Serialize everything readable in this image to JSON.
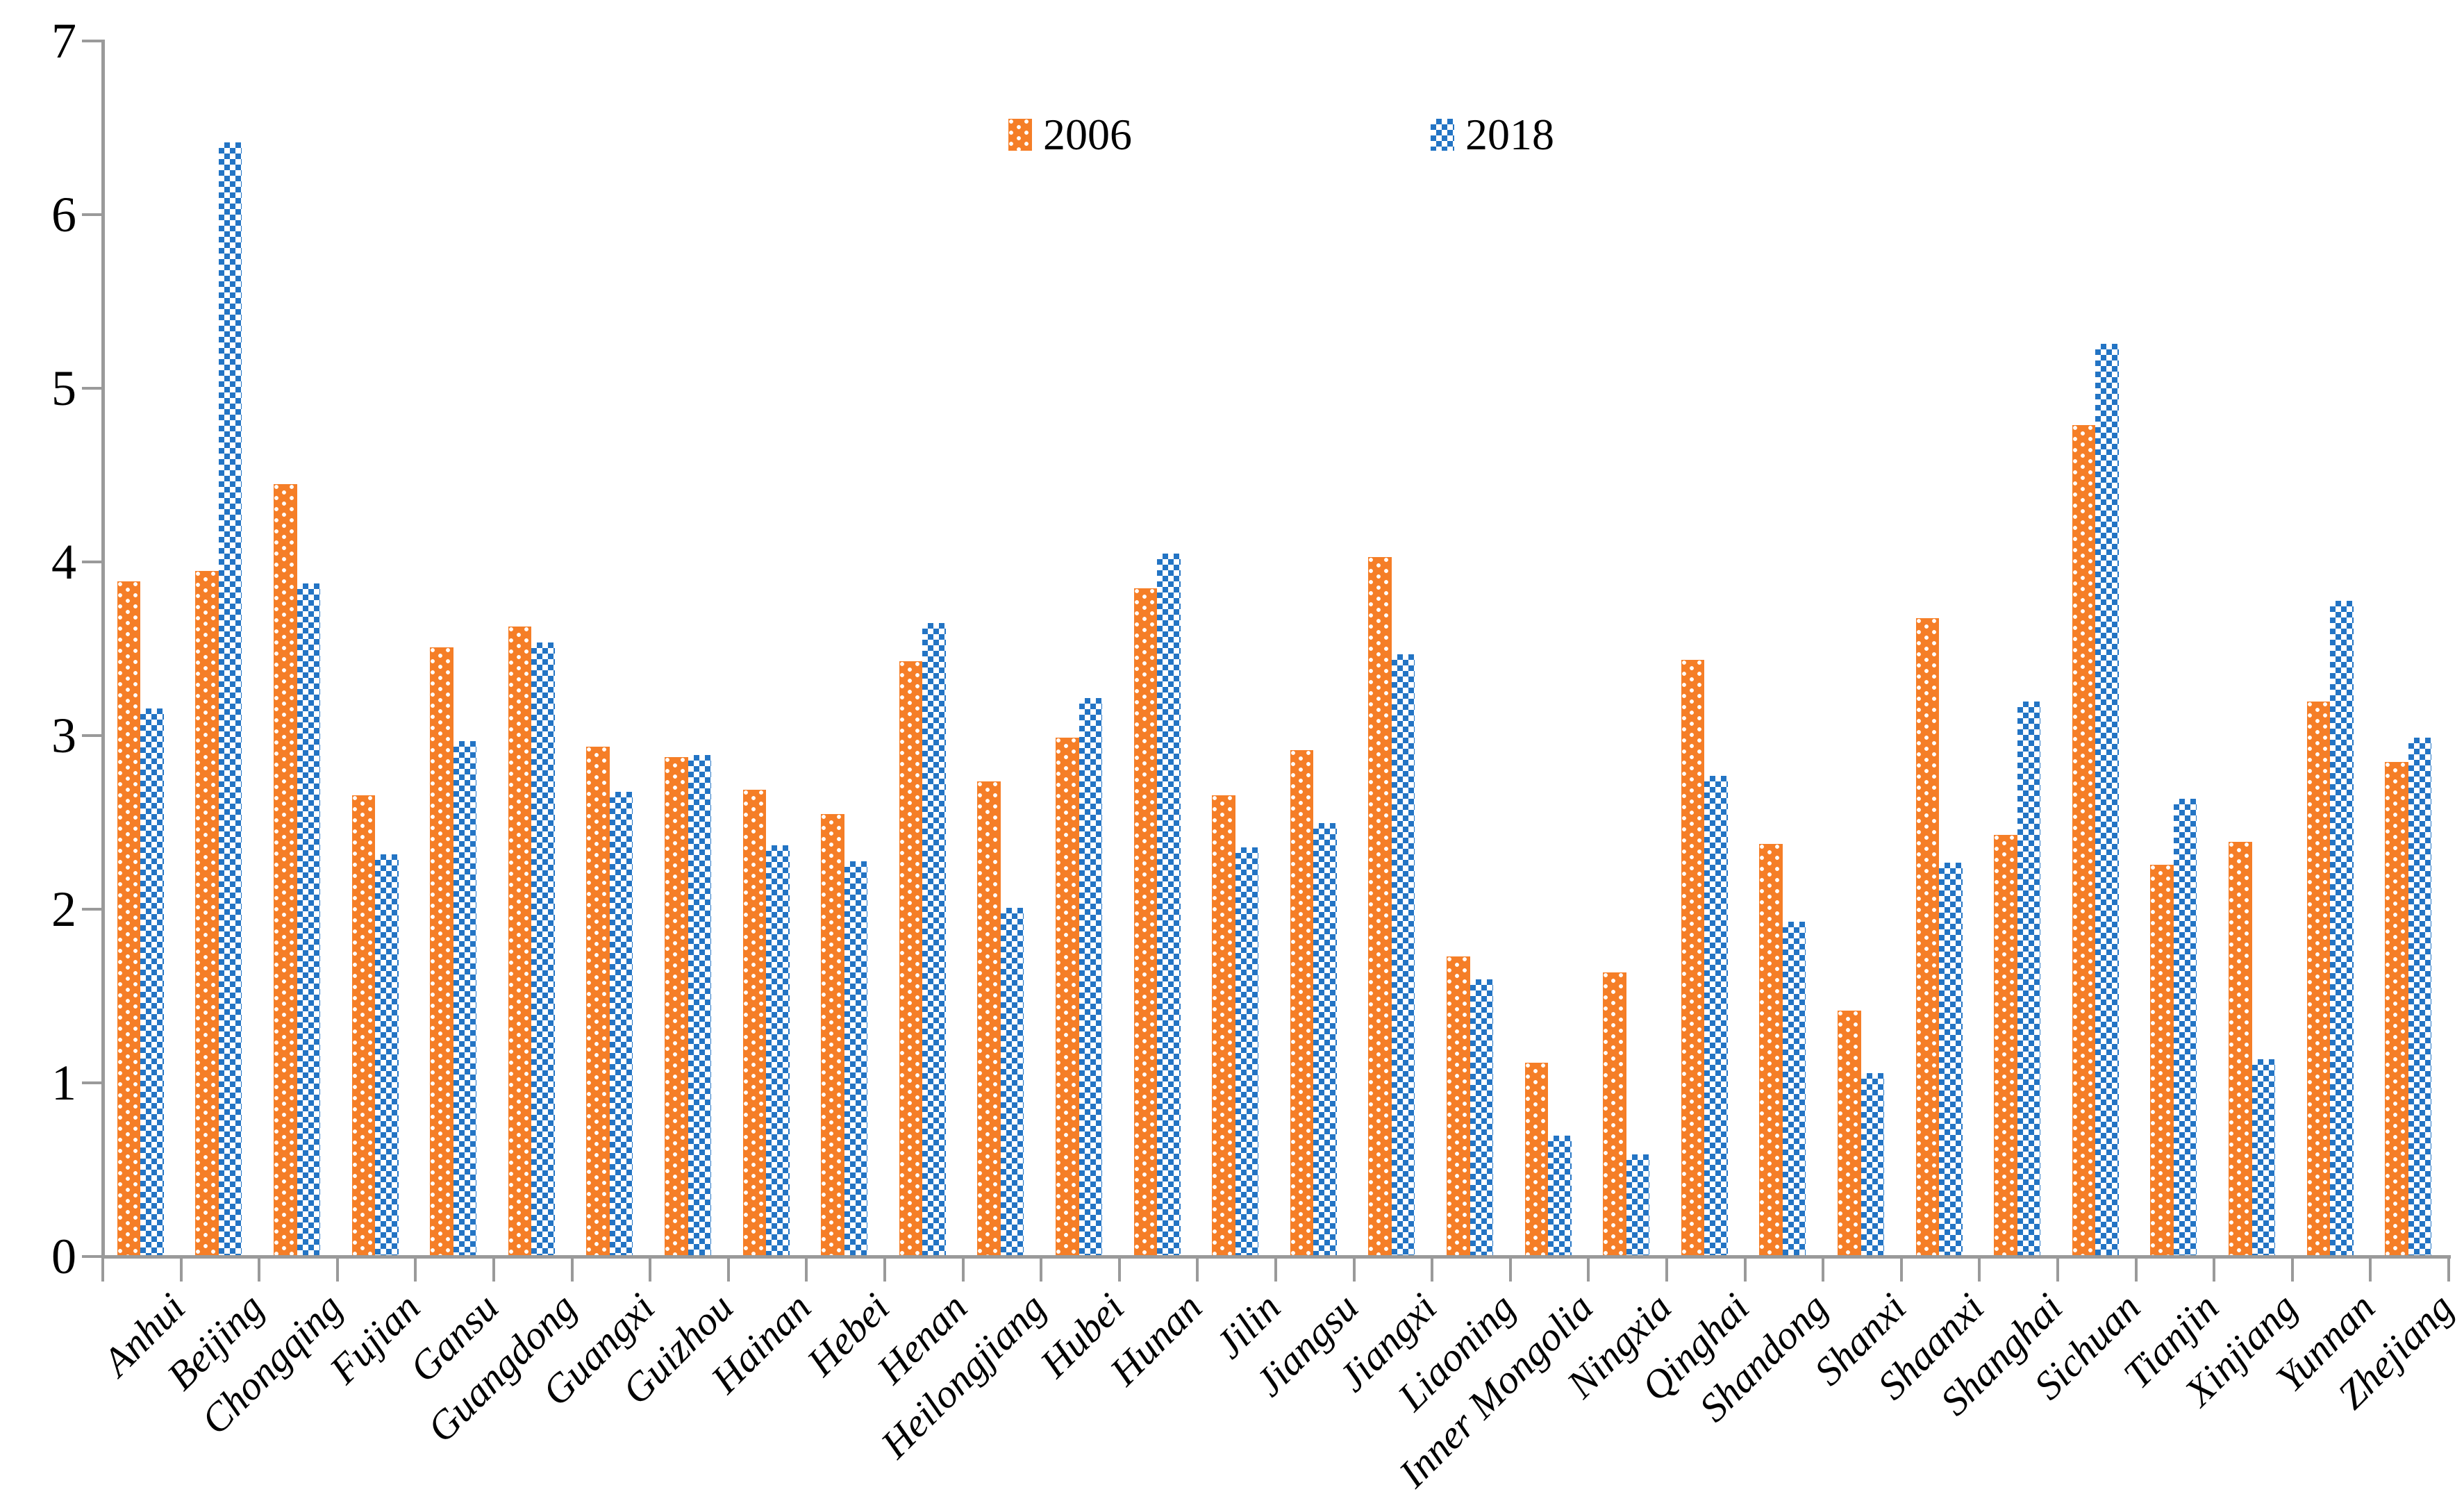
{
  "chart_data": {
    "type": "bar",
    "title": "",
    "categories": [
      "Anhui",
      "Beijing",
      "Chongqing",
      "Fujian",
      "Gansu",
      "Guangdong",
      "Guangxi",
      "Guizhou",
      "Hainan",
      "Hebei",
      "Henan",
      "Heilongjiang",
      "Hubei",
      "Hunan",
      "Jilin",
      "Jiangsu",
      "Jiangxi",
      "Liaoning",
      "Inner Mongolia",
      "Ningxia",
      "Qinghai",
      "Shandong",
      "Shanxi",
      "Shaanxi",
      "Shanghai",
      "Sichuan",
      "Tianjin",
      "Xinjiang",
      "Yunnan",
      "Zhejiang"
    ],
    "series": [
      {
        "name": "2006",
        "color": "#f57e27",
        "pattern": "white-dots",
        "values": [
          3.88,
          3.94,
          4.44,
          2.65,
          3.5,
          3.62,
          2.93,
          2.87,
          2.68,
          2.54,
          3.42,
          2.73,
          2.98,
          3.84,
          2.65,
          2.91,
          4.02,
          1.72,
          1.11,
          1.63,
          3.43,
          2.37,
          1.41,
          3.67,
          2.42,
          4.78,
          2.25,
          2.38,
          3.19,
          2.84
        ]
      },
      {
        "name": "2018",
        "color": "#2374c4",
        "pattern": "checkerboard",
        "values": [
          3.15,
          6.41,
          3.87,
          2.31,
          2.96,
          3.53,
          2.67,
          2.88,
          2.36,
          2.27,
          3.64,
          2.0,
          3.21,
          4.04,
          2.35,
          2.49,
          3.46,
          1.59,
          0.69,
          0.58,
          2.76,
          1.92,
          1.05,
          2.26,
          3.19,
          5.25,
          2.63,
          1.13,
          3.77,
          2.98
        ]
      }
    ],
    "xlabel": "",
    "ylabel": "",
    "ylim": [
      0,
      7
    ],
    "y_ticks": [
      "0",
      "1",
      "2",
      "3",
      "4",
      "5",
      "6",
      "7"
    ],
    "grid": false,
    "legend_position": "top-center",
    "axis_color": "#9a9a9a",
    "text_color": "#000000"
  }
}
